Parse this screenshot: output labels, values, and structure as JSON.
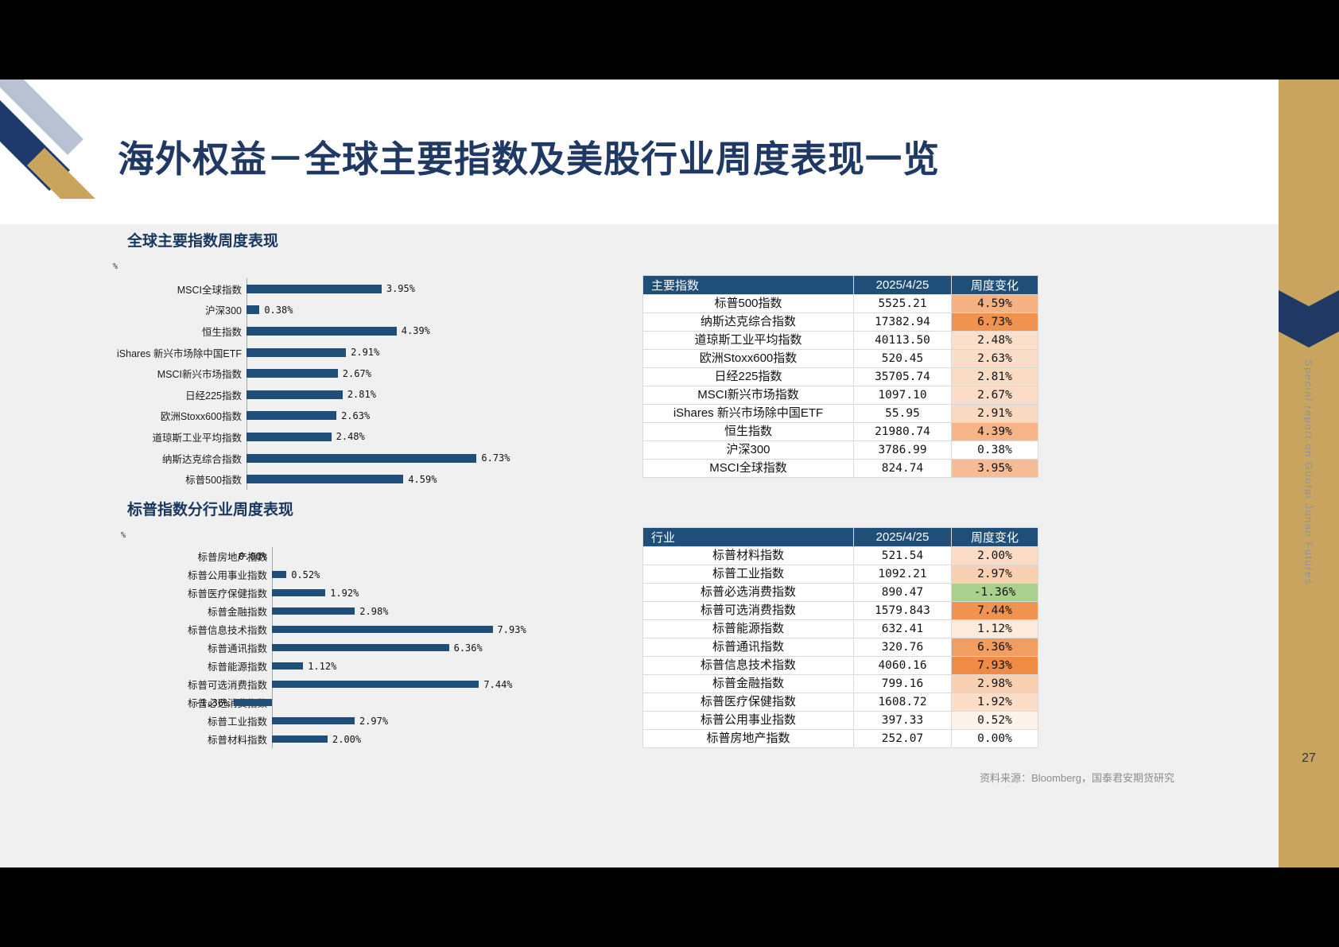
{
  "slide": {
    "title": "海外权益－全球主要指数及美股行业周度表现一览",
    "page_number": "27",
    "source_note": "资料来源：Bloomberg，国泰君安期货研究",
    "sidebar_text": "Special report on Guotai Junan Futures"
  },
  "colors": {
    "navy": "#1f4e79",
    "title_navy": "#1f3864",
    "band_tan": "#c9a45f",
    "chevron_navy": "#1f3864",
    "negative_green": "#a9d08e",
    "logo_silver": "#b9c2d2",
    "logo_navy": "#1e3a6c",
    "logo_gold": "#c9a45c"
  },
  "chart_data": [
    {
      "type": "bar",
      "orientation": "horizontal",
      "title": "全球主要指数周度表现",
      "unit": "%",
      "xlim": [
        0,
        8
      ],
      "categories": [
        "MSCI全球指数",
        "沪深300",
        "恒生指数",
        "iShares 新兴市场除中国ETF",
        "MSCI新兴市场指数",
        "日经225指数",
        "欧洲Stoxx600指数",
        "道琼斯工业平均指数",
        "纳斯达克综合指数",
        "标普500指数"
      ],
      "values": [
        3.95,
        0.38,
        4.39,
        2.91,
        2.67,
        2.81,
        2.63,
        2.48,
        6.73,
        4.59
      ],
      "labels": [
        "3.95%",
        "0.38%",
        "4.39%",
        "2.91%",
        "2.67%",
        "2.81%",
        "2.63%",
        "2.48%",
        "6.73%",
        "4.59%"
      ]
    },
    {
      "type": "bar",
      "orientation": "horizontal",
      "title": "标普指数分行业周度表现",
      "unit": "%",
      "xlim": [
        -2,
        9
      ],
      "categories": [
        "标普房地产指数",
        "标普公用事业指数",
        "标普医疗保健指数",
        "标普金融指数",
        "标普信息技术指数",
        "标普通讯指数",
        "标普能源指数",
        "标普可选消费指数",
        "标普必选消费指数",
        "标普工业指数",
        "标普材料指数"
      ],
      "values": [
        0.0,
        0.52,
        1.92,
        2.98,
        7.93,
        6.36,
        1.12,
        7.44,
        -1.36,
        2.97,
        2.0
      ],
      "labels": [
        "0.00%",
        "0.52%",
        "1.92%",
        "2.98%",
        "7.93%",
        "6.36%",
        "1.12%",
        "7.44%",
        "-1.36%",
        "2.97%",
        "2.00%"
      ]
    }
  ],
  "tables": [
    {
      "headers": [
        "主要指数",
        "2025/4/25",
        "周度变化"
      ],
      "rows": [
        {
          "name": "标普500指数",
          "value": "5525.21",
          "change": "4.59%",
          "bg": "#f6b183"
        },
        {
          "name": "纳斯达克综合指数",
          "value": "17382.94",
          "change": "6.73%",
          "bg": "#ef9351"
        },
        {
          "name": "道琼斯工业平均指数",
          "value": "40113.50",
          "change": "2.48%",
          "bg": "#fbdfcb"
        },
        {
          "name": "欧洲Stoxx600指数",
          "value": "520.45",
          "change": "2.63%",
          "bg": "#fbddc8"
        },
        {
          "name": "日经225指数",
          "value": "35705.74",
          "change": "2.81%",
          "bg": "#fadbc4"
        },
        {
          "name": "MSCI新兴市场指数",
          "value": "1097.10",
          "change": "2.67%",
          "bg": "#fbdcc7"
        },
        {
          "name": "iShares 新兴市场除中国ETF",
          "value": "55.95",
          "change": "2.91%",
          "bg": "#fad9c1"
        },
        {
          "name": "恒生指数",
          "value": "21980.74",
          "change": "4.39%",
          "bg": "#f6b489"
        },
        {
          "name": "沪深300",
          "value": "3786.99",
          "change": "0.38%",
          "bg": "#ffffff"
        },
        {
          "name": "MSCI全球指数",
          "value": "824.74",
          "change": "3.95%",
          "bg": "#f7bc95"
        }
      ]
    },
    {
      "headers": [
        "行业",
        "2025/4/25",
        "周度变化"
      ],
      "rows": [
        {
          "name": "标普材料指数",
          "value": "521.54",
          "change": "2.00%",
          "bg": "#fbdcc6"
        },
        {
          "name": "标普工业指数",
          "value": "1092.21",
          "change": "2.97%",
          "bg": "#f9d1b2"
        },
        {
          "name": "标普必选消费指数",
          "value": "890.47",
          "change": "-1.36%",
          "bg": "#a9d08e"
        },
        {
          "name": "标普可选消费指数",
          "value": "1579.843",
          "change": "7.44%",
          "bg": "#f09250"
        },
        {
          "name": "标普能源指数",
          "value": "632.41",
          "change": "1.12%",
          "bg": "#fdeada"
        },
        {
          "name": "标普通讯指数",
          "value": "320.76",
          "change": "6.36%",
          "bg": "#f19e60"
        },
        {
          "name": "标普信息技术指数",
          "value": "4060.16",
          "change": "7.93%",
          "bg": "#ee8c47"
        },
        {
          "name": "标普金融指数",
          "value": "799.16",
          "change": "2.98%",
          "bg": "#f9d1b2"
        },
        {
          "name": "标普医疗保健指数",
          "value": "1608.72",
          "change": "1.92%",
          "bg": "#fbddc8"
        },
        {
          "name": "标普公用事业指数",
          "value": "397.33",
          "change": "0.52%",
          "bg": "#fef3eb"
        },
        {
          "name": "标普房地产指数",
          "value": "252.07",
          "change": "0.00%",
          "bg": "#ffffff"
        }
      ]
    }
  ]
}
